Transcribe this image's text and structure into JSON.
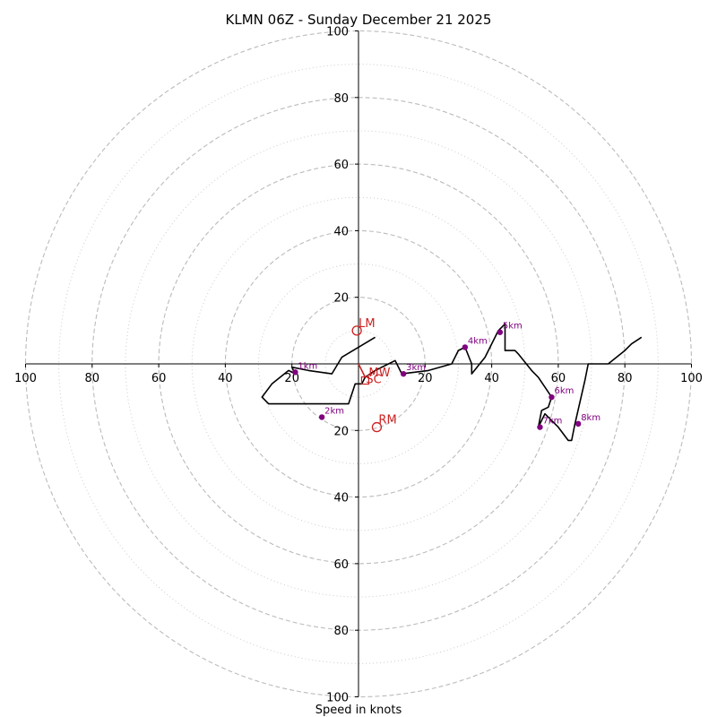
{
  "chart_data": {
    "type": "scatter",
    "title": "KLMN 06Z - Sunday December 21 2025",
    "xlabel": "Speed in knots",
    "ylabel": "",
    "xlim": [
      -100,
      100
    ],
    "ylim": [
      -100,
      100
    ],
    "rings_major": [
      20,
      40,
      60,
      80,
      100
    ],
    "rings_minor": [
      10,
      30,
      50,
      70,
      90
    ],
    "x_ticks": [
      {
        "v": -100,
        "label": "100"
      },
      {
        "v": -80,
        "label": "80"
      },
      {
        "v": -60,
        "label": "60"
      },
      {
        "v": -40,
        "label": "40"
      },
      {
        "v": -20,
        "label": "20"
      },
      {
        "v": 20,
        "label": "20"
      },
      {
        "v": 40,
        "label": "40"
      },
      {
        "v": 60,
        "label": "60"
      },
      {
        "v": 80,
        "label": "80"
      },
      {
        "v": 100,
        "label": "100"
      }
    ],
    "y_ticks": [
      {
        "v": 100,
        "label": "100"
      },
      {
        "v": 80,
        "label": "80"
      },
      {
        "v": 60,
        "label": "60"
      },
      {
        "v": 40,
        "label": "40"
      },
      {
        "v": 20,
        "label": "20"
      },
      {
        "v": -20,
        "label": "20"
      },
      {
        "v": -40,
        "label": "40"
      },
      {
        "v": -60,
        "label": "60"
      },
      {
        "v": -80,
        "label": "80"
      },
      {
        "v": -100,
        "label": "100"
      }
    ],
    "hodograph": [
      [
        5,
        8
      ],
      [
        -5,
        2
      ],
      [
        -8,
        -3
      ],
      [
        -15,
        -2
      ],
      [
        -20,
        -1
      ],
      [
        -19,
        -3
      ],
      [
        -21,
        -2
      ],
      [
        -26,
        -6
      ],
      [
        -29,
        -10
      ],
      [
        -27,
        -12
      ],
      [
        -19,
        -12
      ],
      [
        -3,
        -12
      ],
      [
        -1,
        -6
      ],
      [
        1,
        -6
      ],
      [
        2,
        -4
      ],
      [
        5,
        -2
      ],
      [
        11,
        1
      ],
      [
        13,
        -3
      ],
      [
        21,
        -2
      ],
      [
        28,
        0
      ],
      [
        30,
        4
      ],
      [
        32,
        5
      ],
      [
        34,
        0
      ],
      [
        34,
        -3
      ],
      [
        38,
        2
      ],
      [
        42,
        10
      ],
      [
        44,
        12
      ],
      [
        44,
        4
      ],
      [
        47,
        4
      ],
      [
        48,
        3
      ],
      [
        52,
        -2
      ],
      [
        54,
        -4
      ],
      [
        58,
        -10
      ],
      [
        57,
        -13
      ],
      [
        55,
        -14
      ],
      [
        54,
        -19
      ],
      [
        56,
        -15
      ],
      [
        58,
        -17
      ],
      [
        60,
        -19
      ],
      [
        63,
        -23
      ],
      [
        64,
        -23
      ],
      [
        65,
        -18
      ],
      [
        68,
        -5
      ],
      [
        69,
        0
      ],
      [
        75,
        0
      ],
      [
        80,
        4
      ],
      [
        82,
        6
      ],
      [
        85,
        8
      ]
    ],
    "height_markers": [
      {
        "label": "1km",
        "x": -19,
        "y": -2.5
      },
      {
        "label": "2km",
        "x": -11,
        "y": -16
      },
      {
        "label": "3km",
        "x": 13.5,
        "y": -3
      },
      {
        "label": "4km",
        "x": 32,
        "y": 5
      },
      {
        "label": "5km",
        "x": 42.5,
        "y": 9.5
      },
      {
        "label": "6km",
        "x": 58,
        "y": -10
      },
      {
        "label": "7km",
        "x": 54.5,
        "y": -19
      },
      {
        "label": "8km",
        "x": 66,
        "y": -18
      }
    ],
    "storm_points": [
      {
        "label": "LM",
        "x": -0.5,
        "y": 10,
        "marker": "circle"
      },
      {
        "label": "RM",
        "x": 5.5,
        "y": -19,
        "marker": "circle"
      },
      {
        "label": "SC",
        "x": 2,
        "y": -5,
        "marker": "square"
      },
      {
        "label": "MW",
        "x": 2,
        "y": -3,
        "marker": "none"
      }
    ],
    "mean_wind_vector": {
      "from": [
        0,
        0
      ],
      "to": [
        2,
        -4
      ]
    },
    "colors": {
      "hodograph": "#000000",
      "markers": "#800080",
      "storm": "#cc2222",
      "rings": "#bbbbbb"
    }
  }
}
